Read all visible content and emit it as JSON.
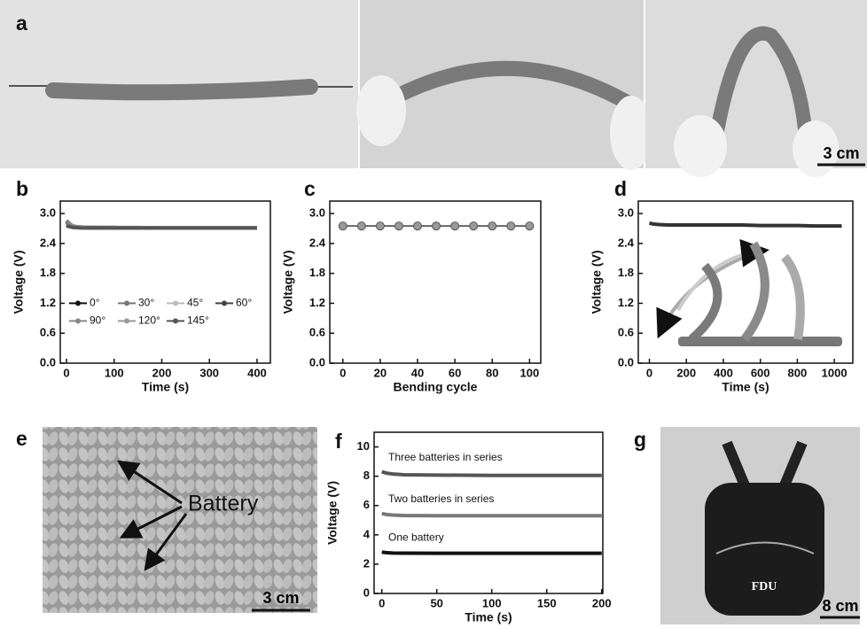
{
  "panel_labels": [
    "a",
    "b",
    "c",
    "d",
    "e",
    "f",
    "g"
  ],
  "photos": {
    "a_scale": "3 cm",
    "e_annotation": "Battery",
    "e_scale": "3 cm",
    "g_text": "FDU",
    "g_scale": "8 cm"
  },
  "chart_data": [
    {
      "type": "line",
      "xlabel": "Time (s)",
      "ylabel": "Voltage (V)",
      "legend": true,
      "x": [
        0,
        5,
        10,
        15,
        20,
        30,
        50,
        100,
        150,
        200,
        250,
        300,
        350,
        400
      ],
      "xlim": [
        -13,
        428
      ],
      "xticks": [
        0,
        100,
        200,
        300,
        400
      ],
      "ylim": [
        0,
        3.25
      ],
      "yticks": [
        {
          "value": 0,
          "label": "0.0"
        },
        0.6,
        1.2,
        1.8,
        2.4,
        {
          "value": 3,
          "label": "3.0"
        }
      ],
      "series": [
        {
          "name": "0°",
          "color": "#111111",
          "values": [
            2.83,
            2.79,
            2.76,
            2.74,
            2.73,
            2.72,
            2.72,
            2.72,
            2.71,
            2.71,
            2.71,
            2.71,
            2.71,
            2.71
          ]
        },
        {
          "name": "30°",
          "color": "#777777",
          "values": [
            2.86,
            2.81,
            2.77,
            2.75,
            2.74,
            2.73,
            2.72,
            2.72,
            2.72,
            2.71,
            2.71,
            2.71,
            2.71,
            2.71
          ]
        },
        {
          "name": "45°",
          "color": "#bbbbbb",
          "values": [
            2.8,
            2.77,
            2.75,
            2.74,
            2.73,
            2.72,
            2.72,
            2.71,
            2.71,
            2.71,
            2.71,
            2.71,
            2.71,
            2.71
          ]
        },
        {
          "name": "60°",
          "color": "#444444",
          "values": [
            2.78,
            2.76,
            2.74,
            2.73,
            2.72,
            2.72,
            2.72,
            2.71,
            2.71,
            2.71,
            2.71,
            2.71,
            2.71,
            2.71
          ]
        },
        {
          "name": "90°",
          "color": "#888888",
          "values": [
            2.77,
            2.75,
            2.74,
            2.73,
            2.72,
            2.72,
            2.71,
            2.71,
            2.71,
            2.71,
            2.71,
            2.71,
            2.71,
            2.71
          ]
        },
        {
          "name": "120°",
          "color": "#999999",
          "values": [
            2.76,
            2.74,
            2.73,
            2.72,
            2.72,
            2.72,
            2.71,
            2.71,
            2.71,
            2.71,
            2.71,
            2.71,
            2.71,
            2.71
          ]
        },
        {
          "name": "145°",
          "color": "#555555",
          "values": [
            2.75,
            2.74,
            2.73,
            2.72,
            2.72,
            2.71,
            2.71,
            2.71,
            2.71,
            2.71,
            2.71,
            2.71,
            2.71,
            2.71
          ]
        }
      ]
    },
    {
      "type": "line",
      "xlabel": "Bending cycle",
      "ylabel": "Voltage (V)",
      "legend": false,
      "markers": true,
      "x": [
        0,
        10,
        20,
        30,
        40,
        50,
        60,
        70,
        80,
        90,
        100
      ],
      "xlim": [
        -7,
        106
      ],
      "xticks": [
        0,
        20,
        40,
        60,
        80,
        100
      ],
      "ylim": [
        0,
        3.25
      ],
      "yticks": [
        {
          "value": 0,
          "label": "0.0"
        },
        0.6,
        1.2,
        1.8,
        2.4,
        {
          "value": 3,
          "label": "3.0"
        }
      ],
      "series": [
        {
          "color": "#666666",
          "values": [
            2.75,
            2.75,
            2.75,
            2.75,
            2.75,
            2.75,
            2.75,
            2.75,
            2.75,
            2.75,
            2.75
          ]
        }
      ]
    },
    {
      "type": "line",
      "xlabel": "Time (s)",
      "ylabel": "Voltage (V)",
      "legend": false,
      "x": [
        0,
        20,
        50,
        100,
        200,
        300,
        400,
        500,
        600,
        700,
        800,
        900,
        1000,
        1040
      ],
      "xlim": [
        -60,
        1100
      ],
      "xticks": [
        0,
        200,
        400,
        600,
        800,
        1000
      ],
      "ylim": [
        0,
        3.25
      ],
      "yticks": [
        {
          "value": 0,
          "label": "0.0"
        },
        0.6,
        1.2,
        1.8,
        2.4,
        {
          "value": 3,
          "label": "3.0"
        }
      ],
      "series": [
        {
          "color": "#333333",
          "values": [
            2.81,
            2.79,
            2.78,
            2.77,
            2.77,
            2.77,
            2.77,
            2.77,
            2.76,
            2.76,
            2.76,
            2.75,
            2.75,
            2.75
          ]
        }
      ]
    },
    {
      "type": "line",
      "xlabel": "Time (s)",
      "ylabel": "Voltage (V)",
      "legend": false,
      "x": [
        0,
        5,
        10,
        20,
        50,
        100,
        150,
        200
      ],
      "xlim": [
        -7,
        201
      ],
      "xticks": [
        0,
        50,
        100,
        150,
        200
      ],
      "ylim": [
        0,
        11
      ],
      "yticks": [
        0,
        2,
        4,
        6,
        8,
        10
      ],
      "series": [
        {
          "name": "Three batteries in series",
          "color": "#555555",
          "values": [
            8.3,
            8.2,
            8.15,
            8.1,
            8.08,
            8.05,
            8.05,
            8.05
          ]
        },
        {
          "name": "Two batteries in series",
          "color": "#777777",
          "values": [
            5.45,
            5.38,
            5.35,
            5.32,
            5.3,
            5.3,
            5.3,
            5.3
          ]
        },
        {
          "name": "One battery",
          "color": "#111111",
          "values": [
            2.82,
            2.78,
            2.76,
            2.75,
            2.74,
            2.74,
            2.74,
            2.74
          ]
        }
      ]
    }
  ]
}
